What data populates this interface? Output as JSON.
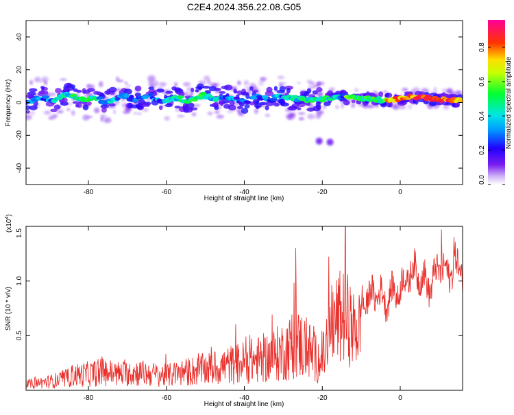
{
  "figure_title": "C2E4.2024.356.22.08.G05",
  "colorbar": {
    "label": "Normalized spectral amplitude",
    "ticks": [
      "0.0",
      "0.2",
      "0.4",
      "0.6",
      "0.8"
    ],
    "tick_values": [
      0.0,
      0.2,
      0.4,
      0.6,
      0.8
    ],
    "range": [
      0.0,
      0.96
    ]
  },
  "chart_data": [
    {
      "type": "heatmap",
      "title": "",
      "xlabel": "Height of straight line (km)",
      "ylabel": "Frequency (Hz)",
      "xlim": [
        -96,
        16
      ],
      "ylim": [
        -50,
        50
      ],
      "xticks": [
        -80,
        -60,
        -40,
        -20,
        0
      ],
      "yticks": [
        -40,
        -20,
        0,
        20,
        40
      ],
      "grid": false,
      "colormap": "rainbow (purple → blue → cyan → green → yellow → red → magenta)",
      "features": [
        {
          "x_range": [
            -96,
            16
          ],
          "frequency_center": 2,
          "description": "main band of energy"
        },
        {
          "x": -20,
          "frequency": -24,
          "description": "isolated blobs"
        }
      ]
    },
    {
      "type": "line",
      "title": "",
      "xlabel": "Height of straight line (km)",
      "ylabel": "SNR (10 * v/v)",
      "y_multiplier_label": "(x10",
      "y_multiplier_exp": "4",
      "xlim": [
        -96,
        16
      ],
      "ylim": [
        0,
        1.5
      ],
      "xticks": [
        -80,
        -60,
        -40,
        -20,
        0
      ],
      "yticks": [
        "0.5",
        "1.0",
        "1.5"
      ],
      "ytick_values": [
        0.5,
        1.0,
        1.5
      ],
      "grid": false,
      "line_color": "#e8302c",
      "series": [
        {
          "x": [
            -96,
            -90,
            -86,
            -84,
            -80,
            -76,
            -72,
            -68,
            -64,
            -60,
            -56,
            -52,
            -48,
            -44,
            -40,
            -36,
            -32,
            -28,
            -26,
            -24,
            -22,
            -20,
            -18,
            -16,
            -14,
            -12,
            -10,
            -8,
            -6,
            -4,
            -2,
            0,
            2,
            4,
            6,
            8,
            10,
            12,
            14,
            16
          ],
          "values": [
            0.08,
            0.12,
            0.15,
            0.2,
            0.22,
            0.25,
            0.22,
            0.24,
            0.22,
            0.2,
            0.24,
            0.27,
            0.3,
            0.34,
            0.38,
            0.42,
            0.48,
            0.58,
            0.62,
            0.58,
            0.45,
            0.4,
            0.8,
            0.9,
            0.95,
            0.75,
            0.8,
            0.85,
            0.9,
            0.82,
            0.88,
            0.92,
            1.05,
            1.1,
            1.0,
            0.95,
            1.15,
            1.05,
            1.15,
            1.1
          ],
          "peaks": [
            {
              "x": -26.8,
              "y": 1.3
            },
            {
              "x": -18.3,
              "y": 1.22
            },
            {
              "x": -14.1,
              "y": 1.5
            },
            {
              "x": 10.6,
              "y": 1.47
            },
            {
              "x": 13.8,
              "y": 1.4
            }
          ]
        }
      ]
    }
  ]
}
